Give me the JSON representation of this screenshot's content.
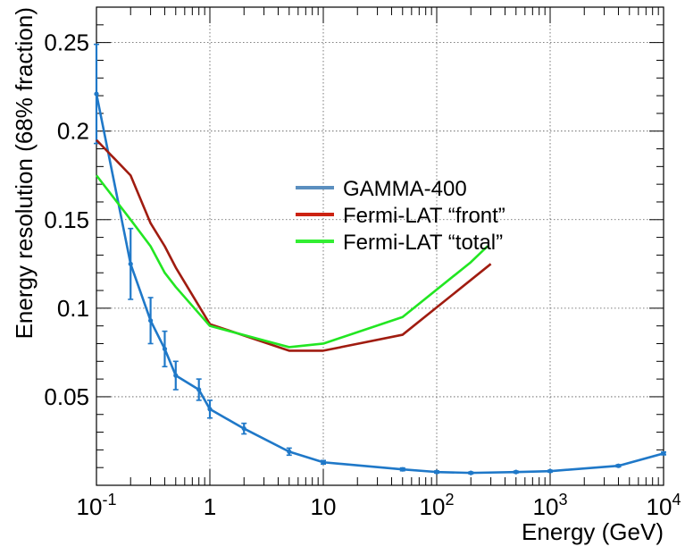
{
  "chart_data": {
    "type": "line",
    "xlabel": "Energy (GeV)",
    "ylabel": "Energy resolution (68% fraction)",
    "x_scale": "log",
    "xlim": [
      0.1,
      10000
    ],
    "ylim": [
      0.0,
      0.27
    ],
    "grid": true,
    "legend_placement": "center",
    "x_ticks": [
      {
        "value": 0.1,
        "base": "10",
        "exp": "-1"
      },
      {
        "value": 1,
        "base": "1",
        "exp": ""
      },
      {
        "value": 10,
        "base": "10",
        "exp": ""
      },
      {
        "value": 100,
        "base": "10",
        "exp": "2"
      },
      {
        "value": 1000,
        "base": "10",
        "exp": "3"
      },
      {
        "value": 10000,
        "base": "10",
        "exp": "4"
      }
    ],
    "y_ticks": [
      {
        "value": 0.05,
        "label": "0.05"
      },
      {
        "value": 0.1,
        "label": "0.1"
      },
      {
        "value": 0.15,
        "label": "0.15"
      },
      {
        "value": 0.2,
        "label": "0.2"
      },
      {
        "value": 0.25,
        "label": "0.25"
      }
    ],
    "series": [
      {
        "name": "GAMMA-400",
        "color": "#1f78c8",
        "legend_color": "#5b8fbf",
        "markers": true,
        "x": [
          0.1,
          0.2,
          0.3,
          0.4,
          0.5,
          0.8,
          1,
          2,
          5,
          10,
          50,
          100,
          200,
          500,
          1000,
          4000,
          10000
        ],
        "y": [
          0.221,
          0.125,
          0.093,
          0.077,
          0.062,
          0.054,
          0.043,
          0.032,
          0.019,
          0.013,
          0.009,
          0.0075,
          0.007,
          0.0075,
          0.008,
          0.011,
          0.018
        ],
        "err": [
          0.028,
          0.02,
          0.013,
          0.01,
          0.008,
          0.006,
          0.005,
          0.003,
          0.002,
          0.001,
          0.0008,
          0.0006,
          0.0005,
          0.0005,
          0.0005,
          0.0006,
          0.0008
        ]
      },
      {
        "name": "Fermi-LAT “front”",
        "color": "#a01c10",
        "legend_color": "#cc2211",
        "markers": false,
        "x": [
          0.1,
          0.2,
          0.3,
          0.4,
          0.5,
          1,
          5,
          10,
          50,
          300
        ],
        "y": [
          0.195,
          0.175,
          0.148,
          0.135,
          0.123,
          0.091,
          0.076,
          0.076,
          0.085,
          0.125
        ]
      },
      {
        "name": "Fermi-LAT “total”",
        "color": "#22e622",
        "legend_color": "#33ee33",
        "markers": false,
        "x": [
          0.1,
          0.2,
          0.3,
          0.4,
          0.5,
          1,
          5,
          10,
          50,
          200,
          280
        ],
        "y": [
          0.175,
          0.15,
          0.135,
          0.12,
          0.112,
          0.09,
          0.078,
          0.08,
          0.095,
          0.126,
          0.135
        ]
      }
    ]
  }
}
